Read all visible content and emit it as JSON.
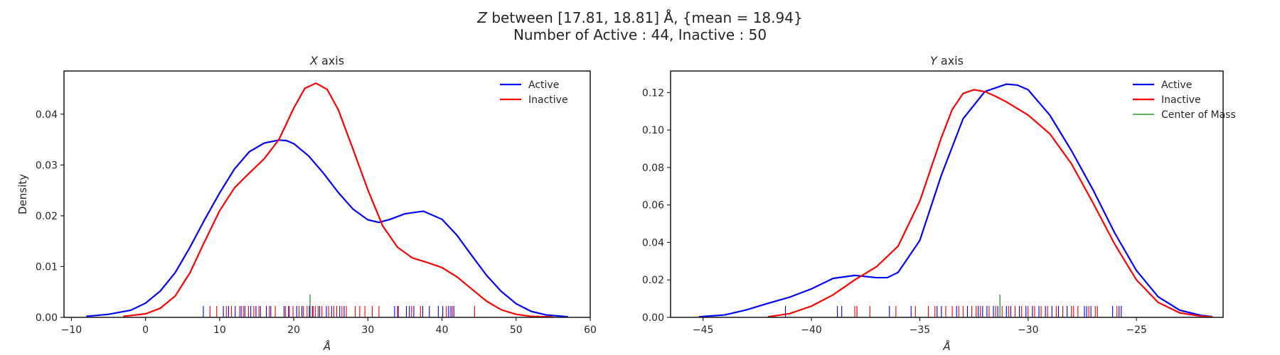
{
  "figure": {
    "title_line1_var": "Z",
    "title_line1_rest": " between [17.81, 18.81] Å, {mean = 18.94}",
    "title_line2": "Number of Active : 44, Inactive : 50"
  },
  "colors": {
    "active": "#0000ff",
    "inactive": "#ff0000",
    "center": "#008000",
    "frame": "#262626"
  },
  "chart_data": [
    {
      "type": "line",
      "title_var": "X",
      "title_rest": " axis",
      "xlabel": "Å",
      "ylabel": "Density",
      "xlim": [
        -11,
        60
      ],
      "ylim": [
        0,
        0.0485
      ],
      "xticks": [
        -10,
        0,
        10,
        20,
        30,
        40,
        50,
        60
      ],
      "yticks": [
        0.0,
        0.01,
        0.02,
        0.03,
        0.04
      ],
      "ytick_decimals": 2,
      "grid": false,
      "legend_position": "top-right",
      "legend": [
        "Active",
        "Inactive"
      ],
      "series": [
        {
          "name": "Active",
          "key": "active",
          "x": [
            -8,
            -5,
            -2,
            0,
            2,
            4,
            6,
            8,
            10,
            12,
            14,
            16,
            18,
            19,
            20,
            22,
            24,
            26,
            28,
            30,
            31.5,
            33,
            35,
            37.5,
            40,
            42,
            44,
            46,
            48,
            50,
            52,
            54,
            57
          ],
          "y": [
            0.0002,
            0.0006,
            0.0014,
            0.0028,
            0.0052,
            0.0088,
            0.0138,
            0.0193,
            0.0245,
            0.0292,
            0.0326,
            0.0343,
            0.0349,
            0.0348,
            0.0342,
            0.0318,
            0.0284,
            0.0246,
            0.0213,
            0.0192,
            0.0187,
            0.0193,
            0.0204,
            0.0209,
            0.0193,
            0.0162,
            0.0122,
            0.0083,
            0.0051,
            0.0027,
            0.0012,
            0.0005,
            0.0001
          ],
          "rug": [
            7.8,
            10.5,
            11.2,
            12.1,
            12.9,
            13.4,
            14.2,
            14.9,
            15.5,
            16.3,
            16.9,
            18.7,
            19.3,
            20.4,
            21.1,
            22.1,
            22.6,
            23.5,
            24.4,
            25.1,
            26.2,
            26.8,
            33.6,
            34.1,
            35.2,
            35.6,
            36.2,
            37.4,
            38.3,
            39.5,
            40.1,
            40.9,
            41.2,
            41.6
          ]
        },
        {
          "name": "Inactive",
          "key": "inactive",
          "x": [
            -3,
            0,
            2,
            4,
            6,
            8,
            10,
            12,
            14,
            16,
            18,
            20,
            21.5,
            23,
            24.5,
            26,
            28,
            30,
            32,
            34,
            36,
            38,
            40,
            42,
            44,
            46,
            48,
            50,
            52,
            55
          ],
          "y": [
            0.0002,
            0.0007,
            0.0018,
            0.0042,
            0.0088,
            0.015,
            0.021,
            0.0255,
            0.0284,
            0.0312,
            0.035,
            0.0412,
            0.0451,
            0.0461,
            0.0449,
            0.0409,
            0.0331,
            0.0251,
            0.018,
            0.0138,
            0.0117,
            0.0108,
            0.0098,
            0.008,
            0.0056,
            0.0032,
            0.0015,
            0.0006,
            0.0002,
            0.0001
          ],
          "rug": [
            8.7,
            9.6,
            10.9,
            11.6,
            12.7,
            13.2,
            13.9,
            14.6,
            15.3,
            16.7,
            17.5,
            18.9,
            19.4,
            19.9,
            20.7,
            21.3,
            21.8,
            22.5,
            22.9,
            23.3,
            23.8,
            24.7,
            25.4,
            25.8,
            26.5,
            27.1,
            28.3,
            28.9,
            29.6,
            30.6,
            31.5,
            34.0,
            35.9,
            37.1,
            40.6,
            41.4,
            44.4
          ]
        }
      ],
      "center_of_mass": 22.2
    },
    {
      "type": "line",
      "title_var": "Y",
      "title_rest": " axis",
      "xlabel": "Å",
      "ylabel": "",
      "xlim": [
        -46.5,
        -21
      ],
      "ylim": [
        0,
        0.1315
      ],
      "xticks": [
        -45,
        -40,
        -35,
        -30,
        -25
      ],
      "yticks": [
        0.0,
        0.02,
        0.04,
        0.06,
        0.08,
        0.1,
        0.12
      ],
      "ytick_decimals": 2,
      "grid": false,
      "legend_position": "top-right",
      "legend": [
        "Active",
        "Inactive",
        "Center of Mass"
      ],
      "series": [
        {
          "name": "Active",
          "key": "active",
          "x": [
            -45.2,
            -44,
            -43,
            -42,
            -41,
            -40,
            -39,
            -38,
            -37,
            -36.5,
            -36,
            -35,
            -34,
            -33,
            -32,
            -31,
            -30.5,
            -30,
            -29,
            -28,
            -27,
            -26,
            -25,
            -24,
            -23,
            -22,
            -21.5
          ],
          "y": [
            0.0003,
            0.0013,
            0.004,
            0.0075,
            0.0108,
            0.0152,
            0.0208,
            0.0224,
            0.0212,
            0.0212,
            0.024,
            0.041,
            0.076,
            0.106,
            0.1205,
            0.1245,
            0.124,
            0.1215,
            0.108,
            0.089,
            0.068,
            0.045,
            0.025,
            0.011,
            0.0038,
            0.001,
            0.0004
          ],
          "rug": [
            -41.2,
            -38.8,
            -38.6,
            -37.9,
            -36.4,
            -35.4,
            -34.2,
            -34.0,
            -33.3,
            -32.8,
            -32.3,
            -32.1,
            -31.9,
            -31.6,
            -31.4,
            -31.0,
            -30.8,
            -30.4,
            -30.1,
            -29.8,
            -29.5,
            -29.2,
            -28.9,
            -28.6,
            -28.2,
            -27.4,
            -27.3,
            -27.1,
            -26.1,
            -25.8,
            -25.7
          ]
        },
        {
          "name": "Inactive",
          "key": "inactive",
          "x": [
            -42,
            -41,
            -40,
            -39,
            -38,
            -37,
            -36,
            -35,
            -34,
            -33.5,
            -33,
            -32.5,
            -32,
            -31.5,
            -31,
            -30.5,
            -30,
            -29,
            -28,
            -27,
            -26,
            -25,
            -24,
            -23,
            -22,
            -21.5
          ],
          "y": [
            0.0003,
            0.002,
            0.006,
            0.012,
            0.02,
            0.027,
            0.038,
            0.062,
            0.096,
            0.111,
            0.1195,
            0.1215,
            0.1205,
            0.118,
            0.115,
            0.1115,
            0.108,
            0.098,
            0.082,
            0.061,
            0.039,
            0.02,
            0.008,
            0.0024,
            0.0006,
            0.0003
          ],
          "rug": [
            -38.0,
            -37.9,
            -37.3,
            -36.1,
            -35.2,
            -34.6,
            -34.3,
            -33.8,
            -33.5,
            -33.2,
            -33.0,
            -32.6,
            -32.4,
            -32.2,
            -31.8,
            -31.5,
            -31.2,
            -30.9,
            -30.6,
            -30.3,
            -30.0,
            -29.7,
            -29.4,
            -29.1,
            -28.7,
            -28.4,
            -28.0,
            -27.9,
            -27.7,
            -27.2,
            -26.9,
            -26.8,
            -25.9
          ]
        }
      ],
      "center_of_mass": -31.3
    }
  ]
}
